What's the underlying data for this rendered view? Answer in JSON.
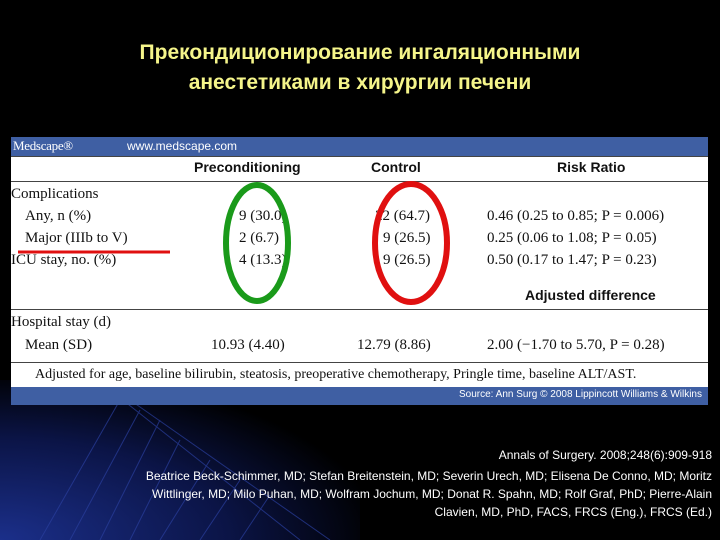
{
  "slide": {
    "title_line1": "Прекондиционирование ингаляционными",
    "title_line2": "анестетиками в хирургии печени",
    "citation": "Annals of Surgery. 2008;248(6):909-918",
    "authors_line1": "Beatrice Beck-Schimmer, MD; Stefan Breitenstein, MD; Severin Urech, MD; Elisena De Conno, MD; Moritz",
    "authors_line2": "Wittlinger, MD; Milo Puhan, MD; Wolfram Jochum, MD; Donat R. Spahn, MD; Rolf Graf, PhD; Pierre-Alain",
    "authors_line3": "Clavien, MD, PhD, FACS, FRCS (Eng.), FRCS (Ed.)"
  },
  "figure": {
    "logo": "Medscape®",
    "url": "www.medscape.com",
    "source": "Source: Ann Surg © 2008 Lippincott Williams & Wilkins",
    "columns": [
      "Preconditioning",
      "Control",
      "Risk Ratio"
    ],
    "rows": [
      {
        "label": "Complications",
        "pre": "",
        "ctrl": "",
        "rr": ""
      },
      {
        "label": "Any, n (%)",
        "pre": "9 (30.0)",
        "ctrl": "22 (64.7)",
        "rr": "0.46 (0.25 to 0.85; P = 0.006)"
      },
      {
        "label": "Major (IIIb to V)",
        "pre": "2 (6.7)",
        "ctrl": "9 (26.5)",
        "rr": "0.25 (0.06 to 1.08; P = 0.05)"
      },
      {
        "label": "ICU stay, no. (%)",
        "pre": "4 (13.3)",
        "ctrl": "9 (26.5)",
        "rr": "0.50 (0.17 to 1.47; P = 0.23)"
      },
      {
        "label": "Hospital stay (d)",
        "pre": "",
        "ctrl": "",
        "rr": ""
      },
      {
        "label": "Mean (SD)",
        "pre": "10.93 (4.40)",
        "ctrl": "12.79 (8.86)",
        "rr": "2.00 (−1.70 to 5.70, P = 0.28)"
      }
    ],
    "adjusted_difference_label": "Adjusted difference",
    "footnote": "Adjusted for age, baseline bilirubin, steatosis, preoperative chemotherapy, Pringle time, baseline ALT/AST."
  },
  "annotation_colors": {
    "circle_preconditioning": "#1a9a1a",
    "circle_control": "#e01010",
    "underline": "#e01010"
  }
}
